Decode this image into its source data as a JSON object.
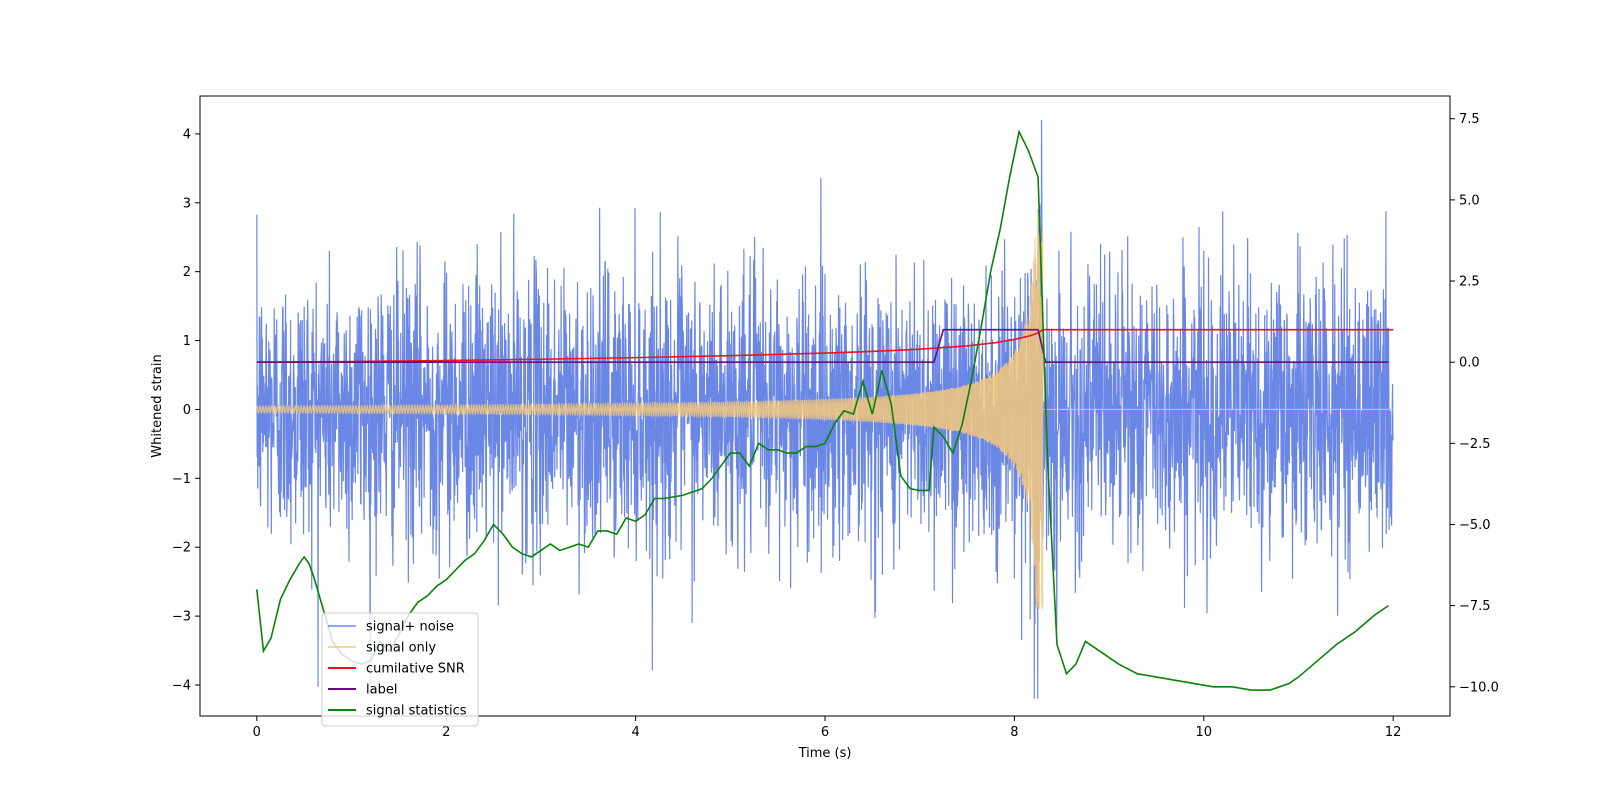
{
  "chart_data": {
    "type": "line",
    "title": "",
    "xlabel": "Time (s)",
    "ylabel": "Whitened strain",
    "y2label": "",
    "xlim": [
      -0.6,
      12.6
    ],
    "ylim": [
      -4.45,
      4.55
    ],
    "y2lim": [
      -10.9,
      8.2
    ],
    "xticks": [
      0,
      2,
      4,
      6,
      8,
      10,
      12
    ],
    "xtick_labels": [
      "0",
      "2",
      "4",
      "6",
      "8",
      "10",
      "12"
    ],
    "yticks": [
      -4,
      -3,
      -2,
      -1,
      0,
      1,
      2,
      3,
      4
    ],
    "ytick_labels": [
      "−4",
      "−3",
      "−2",
      "−1",
      "0",
      "1",
      "2",
      "3",
      "4"
    ],
    "y2ticks": [
      -10,
      -7.5,
      -5,
      -2.5,
      0,
      2.5,
      5,
      7.5
    ],
    "y2tick_labels": [
      "−10.0",
      "−7.5",
      "−5.0",
      "−2.5",
      "0.0",
      "2.5",
      "5.0",
      "7.5"
    ],
    "grid": false,
    "legend_position": "lower-left",
    "series": [
      {
        "name": "signal+ noise",
        "color": "#6b87e6",
        "axis": "left",
        "x_range": [
          0,
          12
        ],
        "noise_std": 1.0,
        "peak_abs": 4.2,
        "note": "noisy strain with embedded chirp"
      },
      {
        "name": "signal only",
        "color": "#f5c87a",
        "axis": "left",
        "x_range": [
          0,
          12
        ],
        "amplitude_start": 0.05,
        "amplitude_peak": 2.9,
        "merger_time": 8.3
      },
      {
        "name": "cumilative SNR",
        "color": "#e8141e",
        "axis": "right",
        "x": [
          0,
          1,
          2,
          3,
          4,
          5,
          6,
          6.5,
          7,
          7.5,
          7.8,
          8.0,
          8.15,
          8.25,
          8.3,
          12
        ],
        "values": [
          0,
          0.02,
          0.05,
          0.09,
          0.14,
          0.2,
          0.28,
          0.33,
          0.4,
          0.5,
          0.6,
          0.7,
          0.8,
          0.9,
          1.0,
          1.0
        ]
      },
      {
        "name": "label",
        "color": "#6a0d83",
        "axis": "right",
        "x": [
          0,
          7.15,
          7.25,
          8.25,
          8.33,
          11.95
        ],
        "values": [
          0,
          0,
          1,
          1,
          0,
          0
        ]
      },
      {
        "name": "signal statistics",
        "color": "#0a820a",
        "axis": "right",
        "x": [
          0,
          0.07,
          0.15,
          0.25,
          0.35,
          0.45,
          0.5,
          0.55,
          0.6,
          0.7,
          0.8,
          0.9,
          1.0,
          1.1,
          1.2,
          1.3,
          1.4,
          1.5,
          1.6,
          1.7,
          1.8,
          1.9,
          2.0,
          2.1,
          2.2,
          2.3,
          2.4,
          2.5,
          2.6,
          2.7,
          2.8,
          2.9,
          3.0,
          3.1,
          3.2,
          3.3,
          3.4,
          3.5,
          3.6,
          3.7,
          3.8,
          3.9,
          4.0,
          4.1,
          4.2,
          4.3,
          4.4,
          4.5,
          4.6,
          4.7,
          4.8,
          4.9,
          5.0,
          5.1,
          5.2,
          5.3,
          5.4,
          5.5,
          5.6,
          5.7,
          5.8,
          5.9,
          6.0,
          6.1,
          6.2,
          6.3,
          6.4,
          6.5,
          6.6,
          6.7,
          6.8,
          6.9,
          7.0,
          7.1,
          7.15,
          7.25,
          7.35,
          7.45,
          7.55,
          7.65,
          7.75,
          7.85,
          7.95,
          8.05,
          8.15,
          8.25,
          8.35,
          8.45,
          8.55,
          8.65,
          8.75,
          8.85,
          8.95,
          9.1,
          9.3,
          9.5,
          9.7,
          9.9,
          10.1,
          10.3,
          10.5,
          10.7,
          10.9,
          11.0,
          11.2,
          11.4,
          11.6,
          11.8,
          11.95
        ],
        "values": [
          -7.0,
          -8.9,
          -8.5,
          -7.3,
          -6.7,
          -6.2,
          -6.0,
          -6.2,
          -6.6,
          -7.6,
          -8.6,
          -9.0,
          -9.2,
          -9.3,
          -9.2,
          -8.6,
          -8.9,
          -8.4,
          -7.8,
          -7.4,
          -7.2,
          -6.9,
          -6.7,
          -6.4,
          -6.1,
          -5.9,
          -5.5,
          -5.0,
          -5.3,
          -5.7,
          -5.9,
          -6.0,
          -5.8,
          -5.6,
          -5.8,
          -5.7,
          -5.6,
          -5.7,
          -5.2,
          -5.2,
          -5.3,
          -4.8,
          -4.9,
          -4.7,
          -4.2,
          -4.2,
          -4.15,
          -4.1,
          -4.0,
          -3.9,
          -3.6,
          -3.2,
          -2.8,
          -2.8,
          -3.2,
          -2.5,
          -2.7,
          -2.7,
          -2.8,
          -2.8,
          -2.6,
          -2.6,
          -2.5,
          -1.9,
          -1.5,
          -1.6,
          -0.6,
          -1.6,
          -0.25,
          -1.3,
          -3.5,
          -3.9,
          -3.95,
          -3.95,
          -2.0,
          -2.3,
          -2.8,
          -1.9,
          -0.5,
          1.1,
          2.8,
          4.1,
          5.7,
          7.1,
          6.5,
          5.7,
          -3.0,
          -8.7,
          -9.6,
          -9.3,
          -8.6,
          -8.8,
          -9.0,
          -9.3,
          -9.6,
          -9.7,
          -9.8,
          -9.9,
          -10.0,
          -10.0,
          -10.1,
          -10.1,
          -9.9,
          -9.7,
          -9.2,
          -8.7,
          -8.3,
          -7.8,
          -7.5
        ]
      }
    ]
  }
}
